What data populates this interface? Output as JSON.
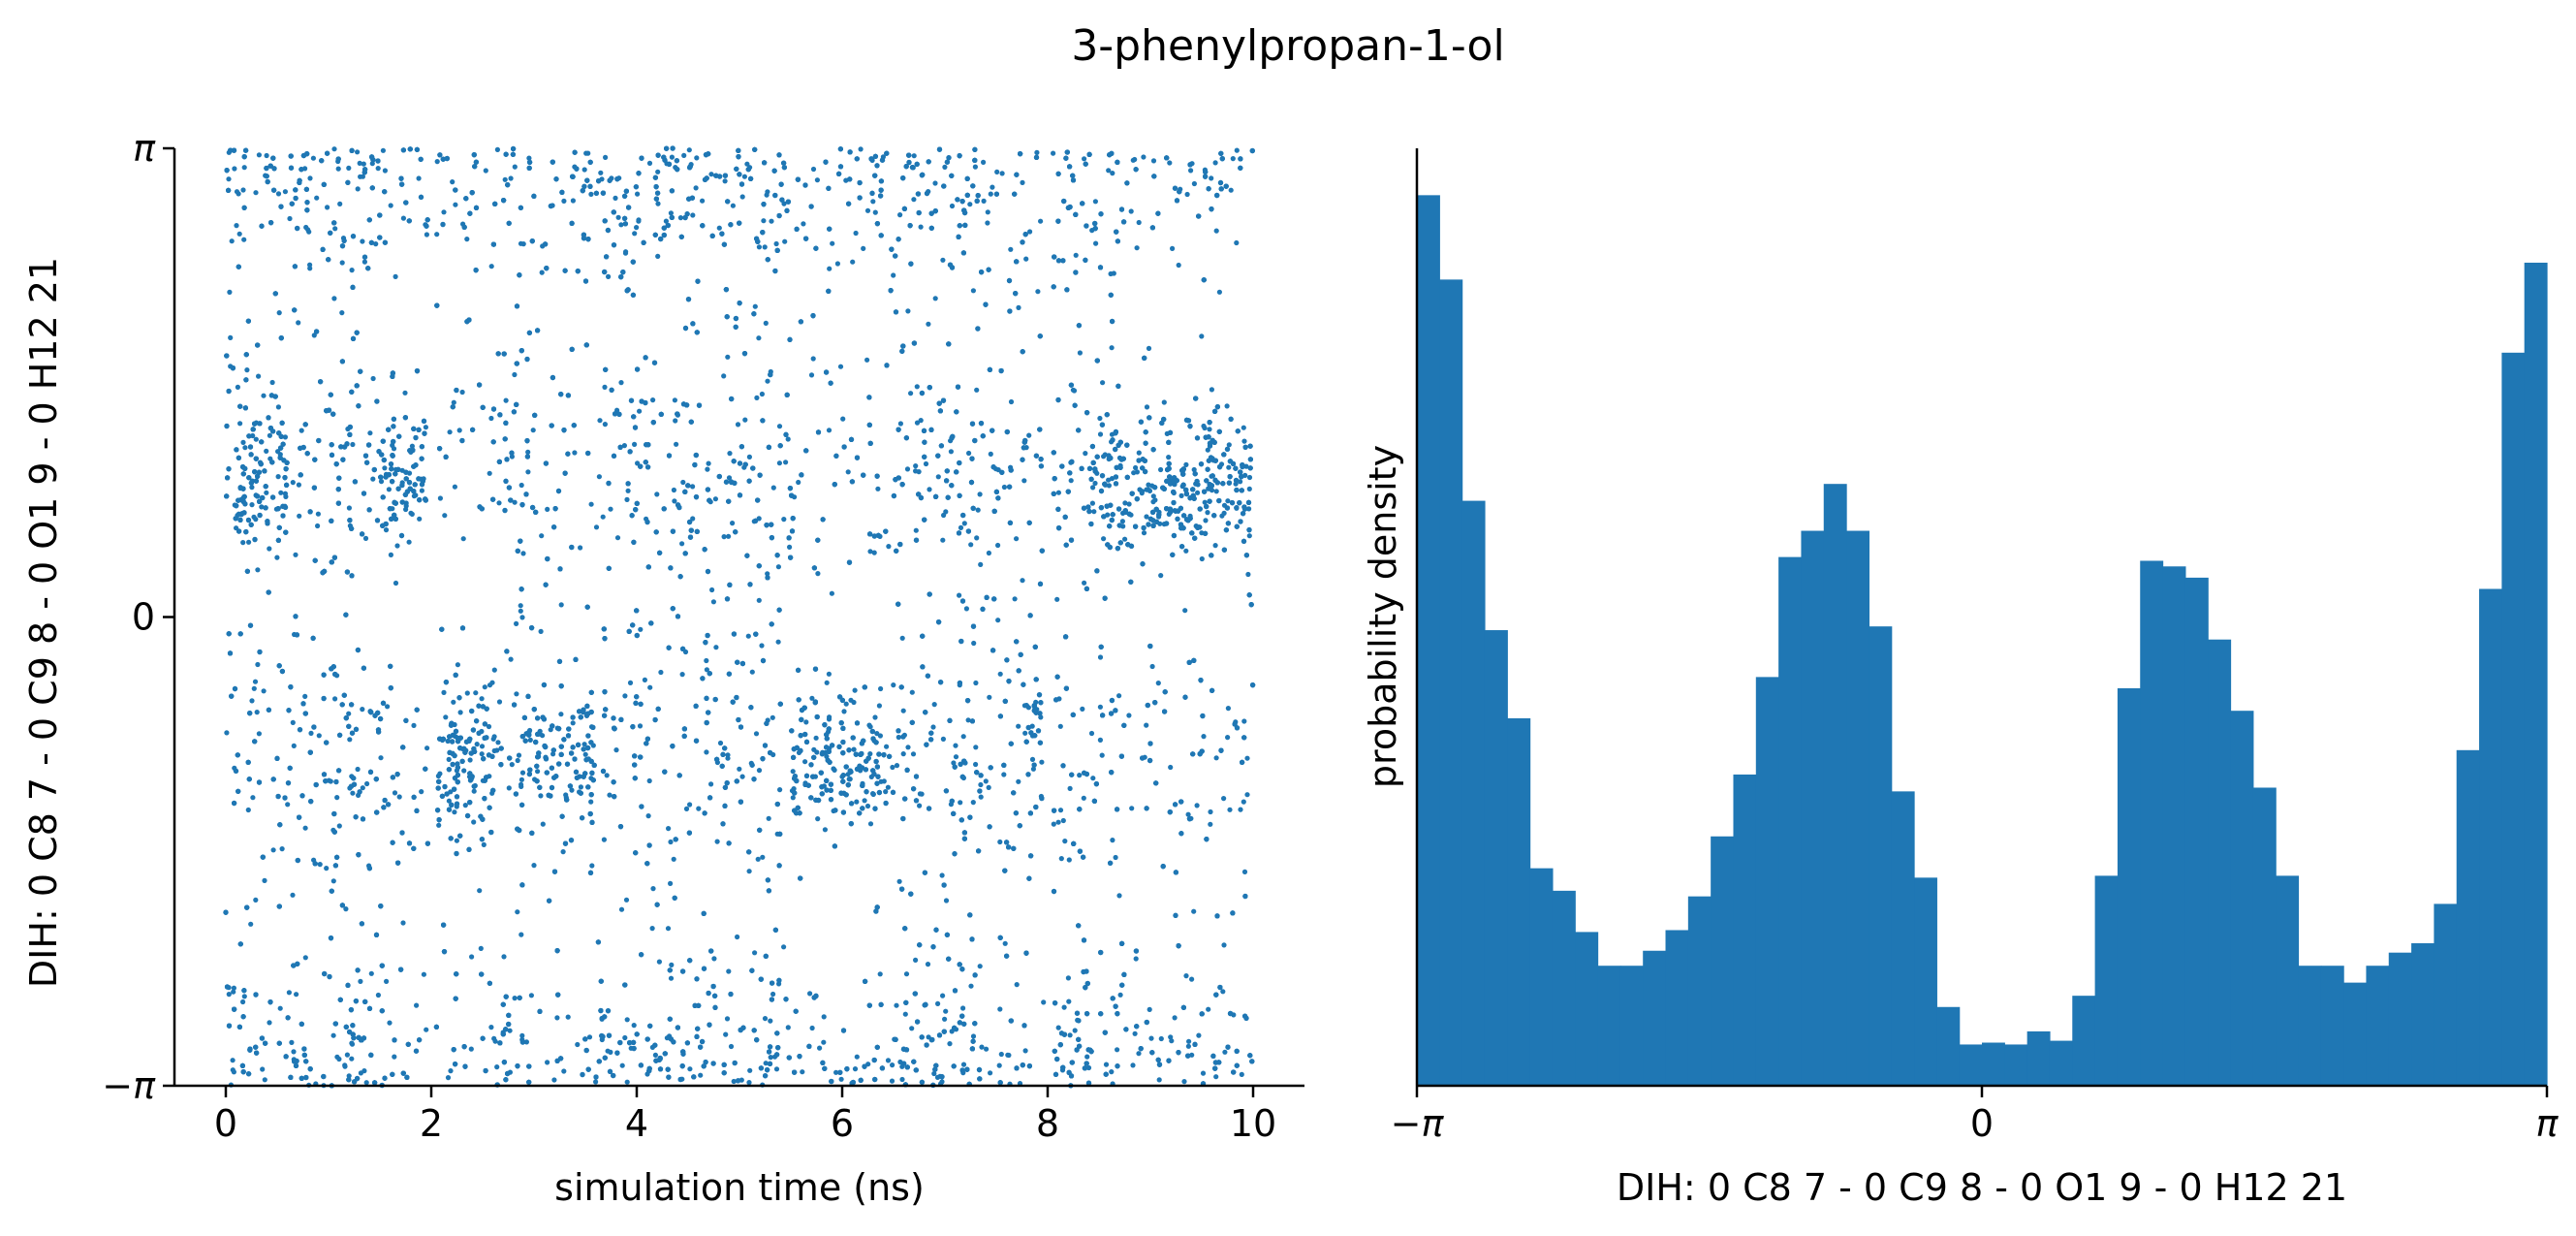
{
  "figure": {
    "title": "3-phenylpropan-1-ol"
  },
  "chart_data": [
    {
      "type": "scatter",
      "title": "",
      "xlabel": "simulation time (ns)",
      "ylabel": "DIH:  0 C8 7 -  0 C9 8 -  0 O1 9 -  0 H12 21",
      "xlim": [
        -0.5,
        10.5
      ],
      "ylim": [
        -3.14159,
        3.14159
      ],
      "xticks": [
        0,
        2,
        4,
        6,
        8,
        10
      ],
      "xtick_labels": [
        "0",
        "2",
        "4",
        "6",
        "8",
        "10"
      ],
      "yticks": [
        -3.14159,
        0,
        3.14159
      ],
      "ytick_labels": [
        "−π",
        "0",
        "π"
      ],
      "grid": false,
      "color": "#1f77b4",
      "n_points_approx": 10000,
      "description_of_density": {
        "clusters_y": [
          -3.0,
          -1.0,
          1.0,
          3.0
        ],
        "dense_bands": [
          {
            "t_start": 0.1,
            "t_end": 0.6,
            "y": 0.95
          },
          {
            "t_start": 1.5,
            "t_end": 1.95,
            "y": 0.95
          },
          {
            "t_start": 2.0,
            "t_end": 2.6,
            "y": -1.0
          },
          {
            "t_start": 2.9,
            "t_end": 3.6,
            "y": -0.9
          },
          {
            "t_start": 5.5,
            "t_end": 6.5,
            "y": -0.95
          },
          {
            "t_start": 7.8,
            "t_end": 7.95,
            "y": -0.8
          },
          {
            "t_start": 8.4,
            "t_end": 10.0,
            "y": 0.9
          }
        ],
        "gaps_t": [
          [
            1.97,
            2.05
          ],
          [
            7.96,
            8.05
          ]
        ]
      }
    },
    {
      "type": "bar",
      "subtype": "histogram",
      "title": "",
      "xlabel": "DIH:  0 C8 7 -  0 C9 8 -  0 O1 9 -  0 H12 21",
      "ylabel": "probability density",
      "xlim": [
        -3.14159,
        3.14159
      ],
      "xticks": [
        -3.14159,
        0,
        3.14159
      ],
      "xtick_labels": [
        "−π",
        "0",
        "π"
      ],
      "ylim": [
        0,
        0.5
      ],
      "grid": false,
      "color": "#1f77b4",
      "bin_count": 50,
      "values": [
        0.475,
        0.43,
        0.312,
        0.243,
        0.196,
        0.116,
        0.104,
        0.082,
        0.064,
        0.064,
        0.072,
        0.083,
        0.101,
        0.133,
        0.166,
        0.218,
        0.282,
        0.296,
        0.321,
        0.296,
        0.245,
        0.157,
        0.111,
        0.042,
        0.022,
        0.023,
        0.022,
        0.029,
        0.024,
        0.048,
        0.112,
        0.212,
        0.28,
        0.277,
        0.271,
        0.238,
        0.2,
        0.159,
        0.112,
        0.064,
        0.064,
        0.055,
        0.064,
        0.071,
        0.076,
        0.097,
        0.179,
        0.265,
        0.391,
        0.439
      ]
    }
  ]
}
